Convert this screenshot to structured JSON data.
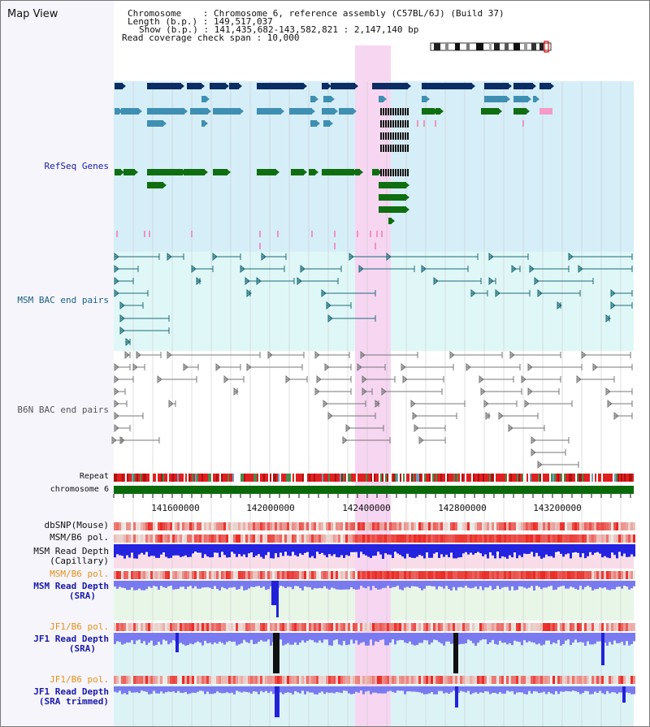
{
  "view": {
    "title": "Map View"
  },
  "info": {
    "chromosome": "Chromosome    : Chromosome 6, reference assembly (C57BL/6J) (Build 37)",
    "length": "Length (b.p.) : 149,517,037",
    "show": "Show (b.p.) : 141,435,682-143,582,821 : 2,147,140 bp",
    "coverage": "Read coverage check span : 10,000"
  },
  "tracks": {
    "refseq": "RefSeq Genes",
    "msm_bac": "MSM BAC end pairs",
    "b6n_bac": "B6N BAC end pairs",
    "repeat": "Repeat",
    "chrom": "chromosome 6",
    "dbsnp": "dbSNP(Mouse)",
    "msm_pol": "MSM/B6 pol.",
    "msm_depth_cap_1": "MSM Read Depth",
    "msm_depth_cap_2": "(Capillary)",
    "msm_pol2": "MSM/B6 pol.",
    "msm_depth_sra_1": "MSM Read Depth",
    "msm_depth_sra_2": "(SRA)",
    "jf1_pol": "JF1/B6 pol.",
    "jf1_depth_1": "JF1 Read Depth",
    "jf1_depth_2": "(SRA)",
    "jf1_pol2": "JF1/B6 pol.",
    "jf1_trim_1": "JF1 Read Depth",
    "jf1_trim_2": "(SRA trimmed)"
  },
  "axis": {
    "ticks": [
      "141600000",
      "142000000",
      "142400000",
      "142800000",
      "143200000"
    ]
  },
  "colors": {
    "refseq_bg": "#d6eef8",
    "msm_bg": "#e0f7f7",
    "highlight": "#f7d6f2",
    "gene_dark": "#0b2d63",
    "gene_mid": "#3f8fb3",
    "gene_green": "#0f6e10",
    "msm_line": "#1c6b7a",
    "b6n_line": "#777777",
    "depth_blue": "#2323e0",
    "depth_light": "#7a7af0",
    "chrom_green": "#0a6a0a",
    "pol_red": "#e31f1f"
  }
}
